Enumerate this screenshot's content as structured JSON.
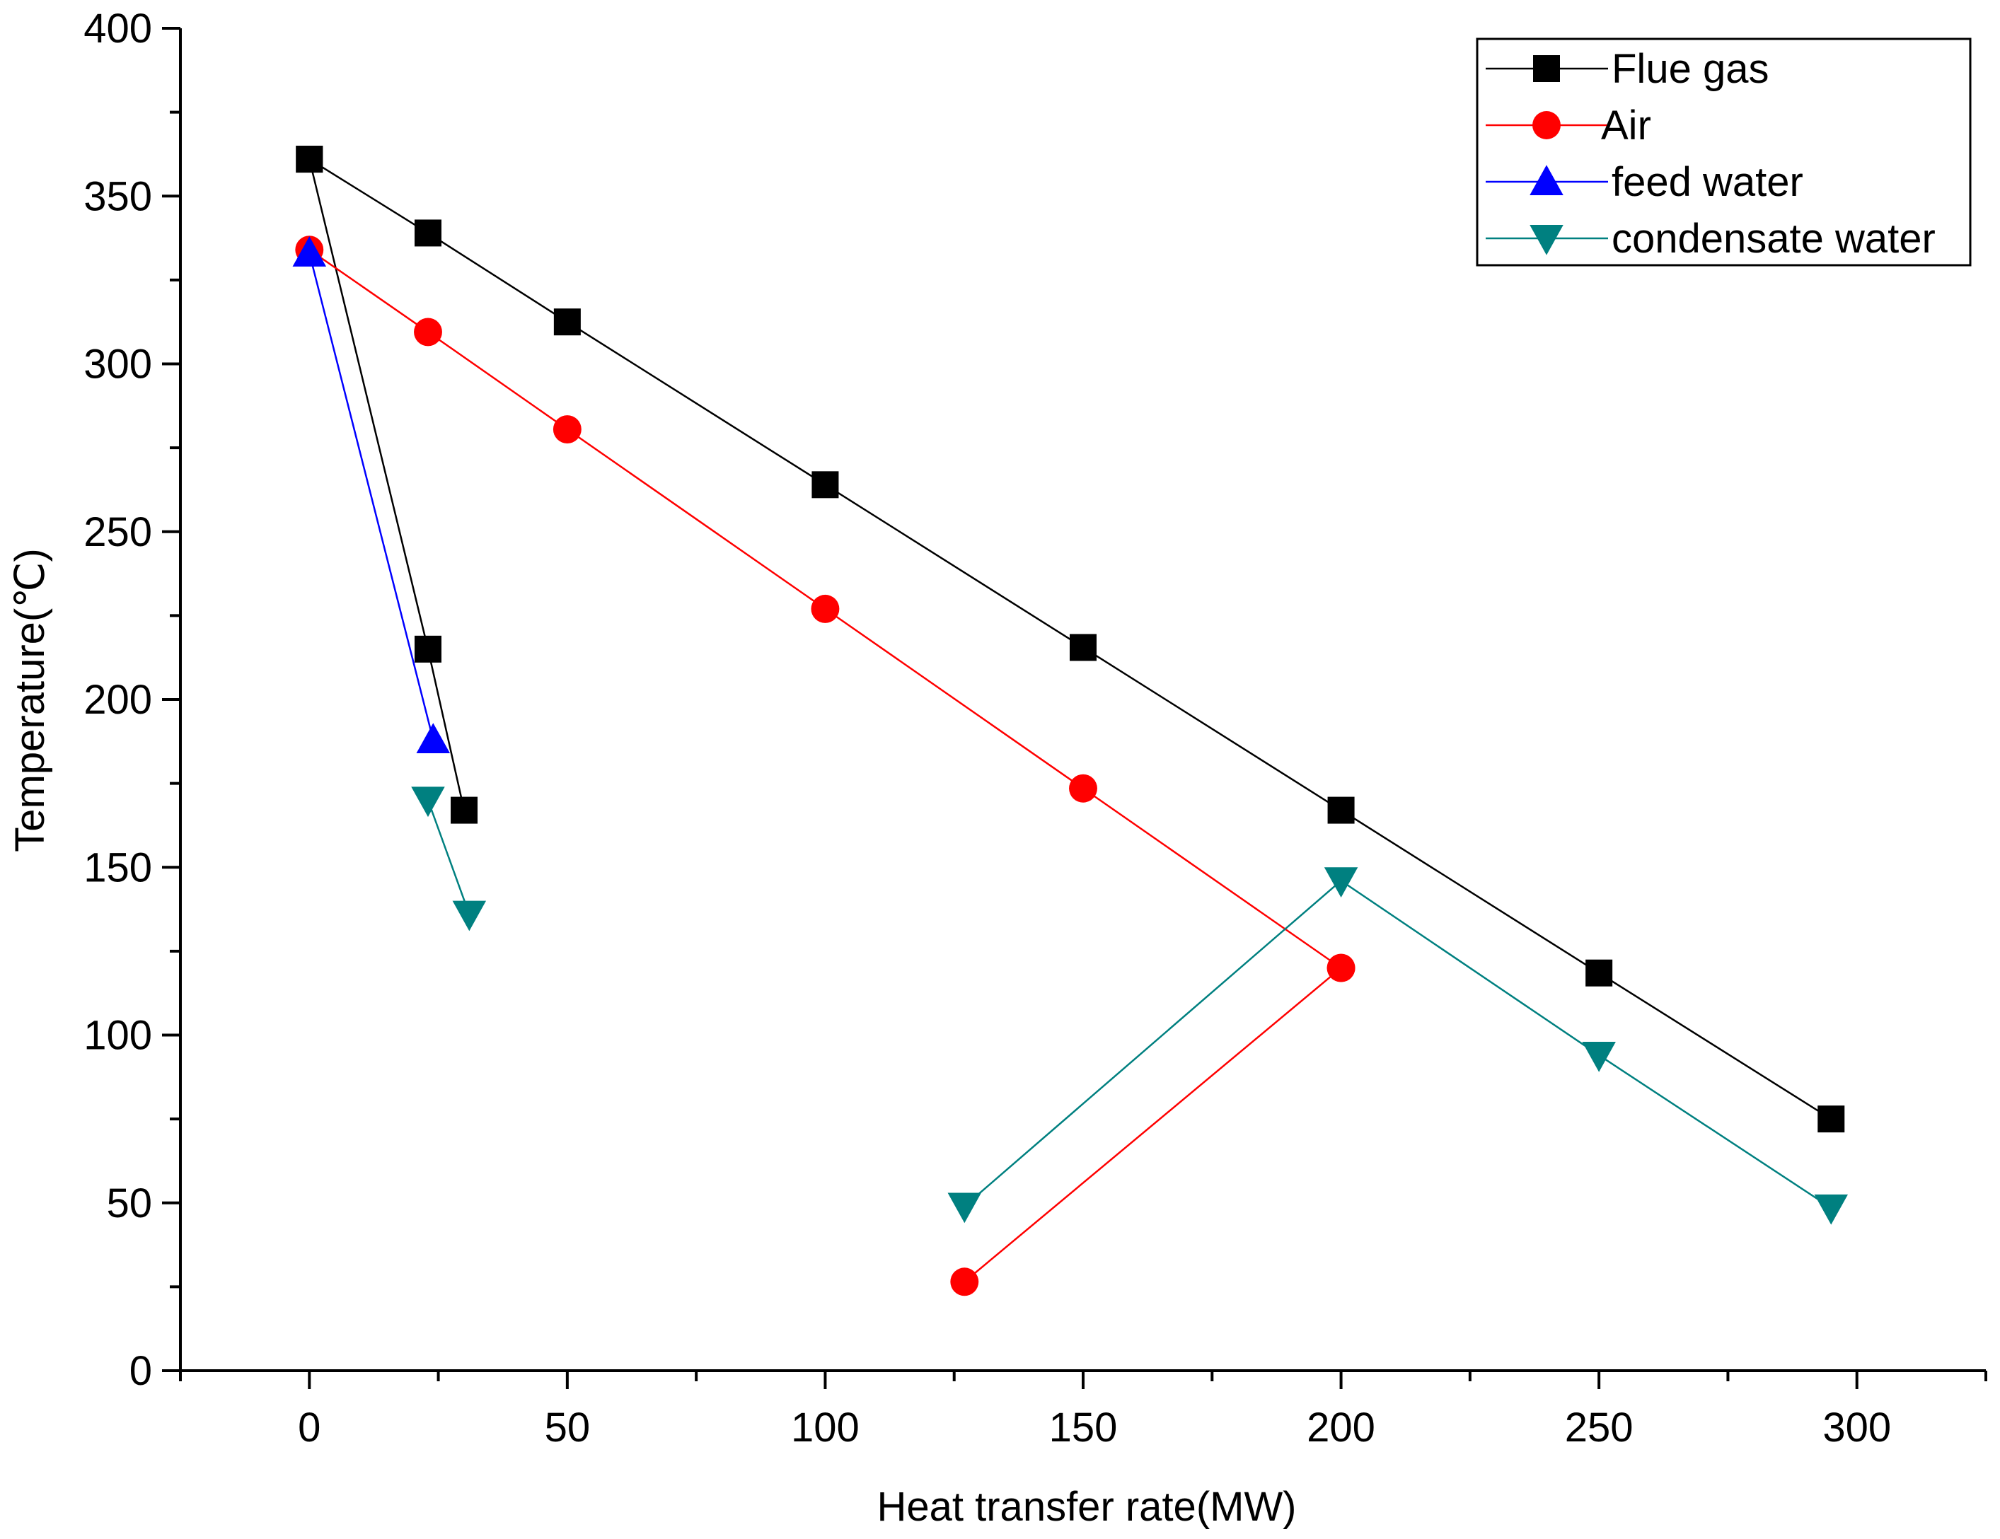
{
  "chart_data": {
    "type": "line",
    "title": "",
    "xlabel": "Heat transfer rate(MW)",
    "ylabel": "Temperature(℃)",
    "xlim": [
      -25,
      325
    ],
    "ylim": [
      0,
      400
    ],
    "xticks": [
      0,
      50,
      100,
      150,
      200,
      250,
      300
    ],
    "yticks": [
      0,
      50,
      100,
      150,
      200,
      250,
      300,
      350,
      400
    ],
    "grid": false,
    "legend_position": "top-right",
    "series": [
      {
        "name": "Flue gas",
        "color": "#000000",
        "marker": "square",
        "segments": [
          [
            [
              0,
              361
            ],
            [
              23,
              339
            ],
            [
              50,
              312.5
            ],
            [
              100,
              264
            ],
            [
              150,
              215.5
            ],
            [
              200,
              167
            ],
            [
              250,
              118.5
            ],
            [
              295,
              75
            ]
          ],
          [
            [
              0,
              361
            ],
            [
              23,
              215
            ],
            [
              30,
              167
            ]
          ]
        ]
      },
      {
        "name": "Air",
        "color": "#ff0000",
        "marker": "circle",
        "segments": [
          [
            [
              0,
              334
            ],
            [
              23,
              309.5
            ],
            [
              50,
              280.5
            ],
            [
              100,
              227
            ],
            [
              150,
              173.5
            ],
            [
              200,
              120
            ]
          ],
          [
            [
              127,
              26.5
            ],
            [
              200,
              120
            ]
          ]
        ]
      },
      {
        "name": "feed water",
        "color": "#0000ff",
        "marker": "triangle-up",
        "segments": [
          [
            [
              0,
              333
            ],
            [
              24,
              188
            ]
          ]
        ]
      },
      {
        "name": "condensate water",
        "color": "#008080",
        "marker": "triangle-down",
        "segments": [
          [
            [
              23,
              170
            ],
            [
              31,
              136
            ]
          ],
          [
            [
              127,
              49
            ],
            [
              200,
              146
            ],
            [
              250,
              94
            ],
            [
              295,
              48.5
            ]
          ]
        ]
      }
    ]
  }
}
